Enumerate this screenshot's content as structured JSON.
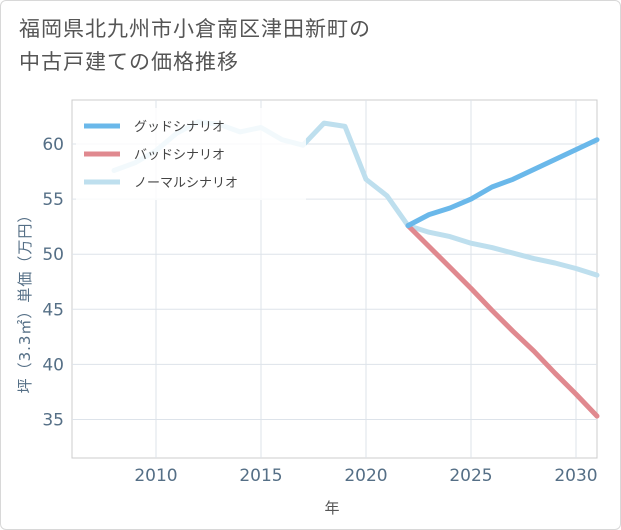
{
  "title_line1": "福岡県北九州市小倉南区津田新町の",
  "title_line2": "中古戸建ての価格推移",
  "chart_data": {
    "type": "line",
    "xlabel": "年",
    "ylabel": "坪（3.3㎡）単価（万円）",
    "xlim": [
      2006,
      2031
    ],
    "ylim": [
      31.5,
      64
    ],
    "x_ticks": [
      2010,
      2015,
      2020,
      2025,
      2030
    ],
    "y_ticks": [
      35,
      40,
      45,
      50,
      55,
      60
    ],
    "legend_position": "top-left",
    "series": [
      {
        "name": "グッドシナリオ",
        "color": "#6ab8ea",
        "x": [
          2022,
          2023,
          2024,
          2025,
          2026,
          2027,
          2028,
          2029,
          2030,
          2031
        ],
        "y": [
          52.6,
          53.6,
          54.2,
          55.0,
          56.1,
          56.8,
          57.7,
          58.6,
          59.5,
          60.4
        ]
      },
      {
        "name": "バッドシナリオ",
        "color": "#e0898f",
        "x": [
          2022,
          2023,
          2024,
          2025,
          2026,
          2027,
          2028,
          2029,
          2030,
          2031
        ],
        "y": [
          52.6,
          50.7,
          48.8,
          46.9,
          44.9,
          43.0,
          41.2,
          39.2,
          37.3,
          35.3
        ]
      },
      {
        "name": "ノーマルシナリオ",
        "color": "#bedfee",
        "x": [
          2008,
          2009,
          2010,
          2011,
          2012,
          2013,
          2014,
          2015,
          2016,
          2017,
          2018,
          2019,
          2020,
          2021,
          2022,
          2023,
          2024,
          2025,
          2026,
          2027,
          2028,
          2029,
          2030,
          2031
        ],
        "y": [
          57.6,
          58.3,
          59.4,
          61.0,
          62.0,
          61.8,
          61.1,
          61.5,
          60.4,
          59.9,
          61.9,
          61.6,
          56.8,
          55.3,
          52.6,
          52.0,
          51.6,
          51.0,
          50.6,
          50.1,
          49.6,
          49.2,
          48.7,
          48.1
        ]
      }
    ]
  }
}
